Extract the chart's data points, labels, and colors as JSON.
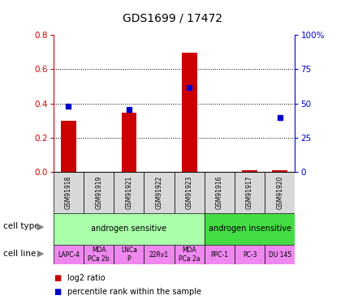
{
  "title": "GDS1699 / 17472",
  "samples": [
    "GSM91918",
    "GSM91919",
    "GSM91921",
    "GSM91922",
    "GSM91923",
    "GSM91916",
    "GSM91917",
    "GSM91920"
  ],
  "log2_ratio": [
    0.3,
    0.0,
    0.345,
    0.0,
    0.695,
    0.0,
    0.01,
    0.01
  ],
  "percentile_rank": [
    0.48,
    null,
    0.455,
    null,
    0.615,
    null,
    null,
    0.395
  ],
  "cell_types": [
    {
      "label": "androgen sensitive",
      "start": 0,
      "end": 5,
      "color": "#aaffaa"
    },
    {
      "label": "androgen insensitive",
      "start": 5,
      "end": 8,
      "color": "#44dd44"
    }
  ],
  "cell_lines": [
    {
      "label": "LAPC-4",
      "start": 0,
      "end": 1
    },
    {
      "label": "MDA\nPCa 2b",
      "start": 1,
      "end": 2
    },
    {
      "label": "LNCa\nP",
      "start": 2,
      "end": 3
    },
    {
      "label": "22Rv1",
      "start": 3,
      "end": 4
    },
    {
      "label": "MDA\nPCa 2a",
      "start": 4,
      "end": 5
    },
    {
      "label": "PPC-1",
      "start": 5,
      "end": 6
    },
    {
      "label": "PC-3",
      "start": 6,
      "end": 7
    },
    {
      "label": "DU 145",
      "start": 7,
      "end": 8
    }
  ],
  "cell_line_color": "#ee88ee",
  "sample_box_color": "#d8d8d8",
  "ylim_left": [
    0,
    0.8
  ],
  "ylim_right": [
    0,
    100
  ],
  "yticks_left": [
    0,
    0.2,
    0.4,
    0.6,
    0.8
  ],
  "yticks_right": [
    0,
    25,
    50,
    75,
    100
  ],
  "yticklabels_right": [
    "0",
    "25",
    "50",
    "75",
    "100%"
  ],
  "bar_color": "#cc0000",
  "dot_color": "#0000cc",
  "title_fontsize": 10,
  "tick_fontsize": 7.5,
  "left_axis_color": "#cc0000",
  "right_axis_color": "#0000cc"
}
